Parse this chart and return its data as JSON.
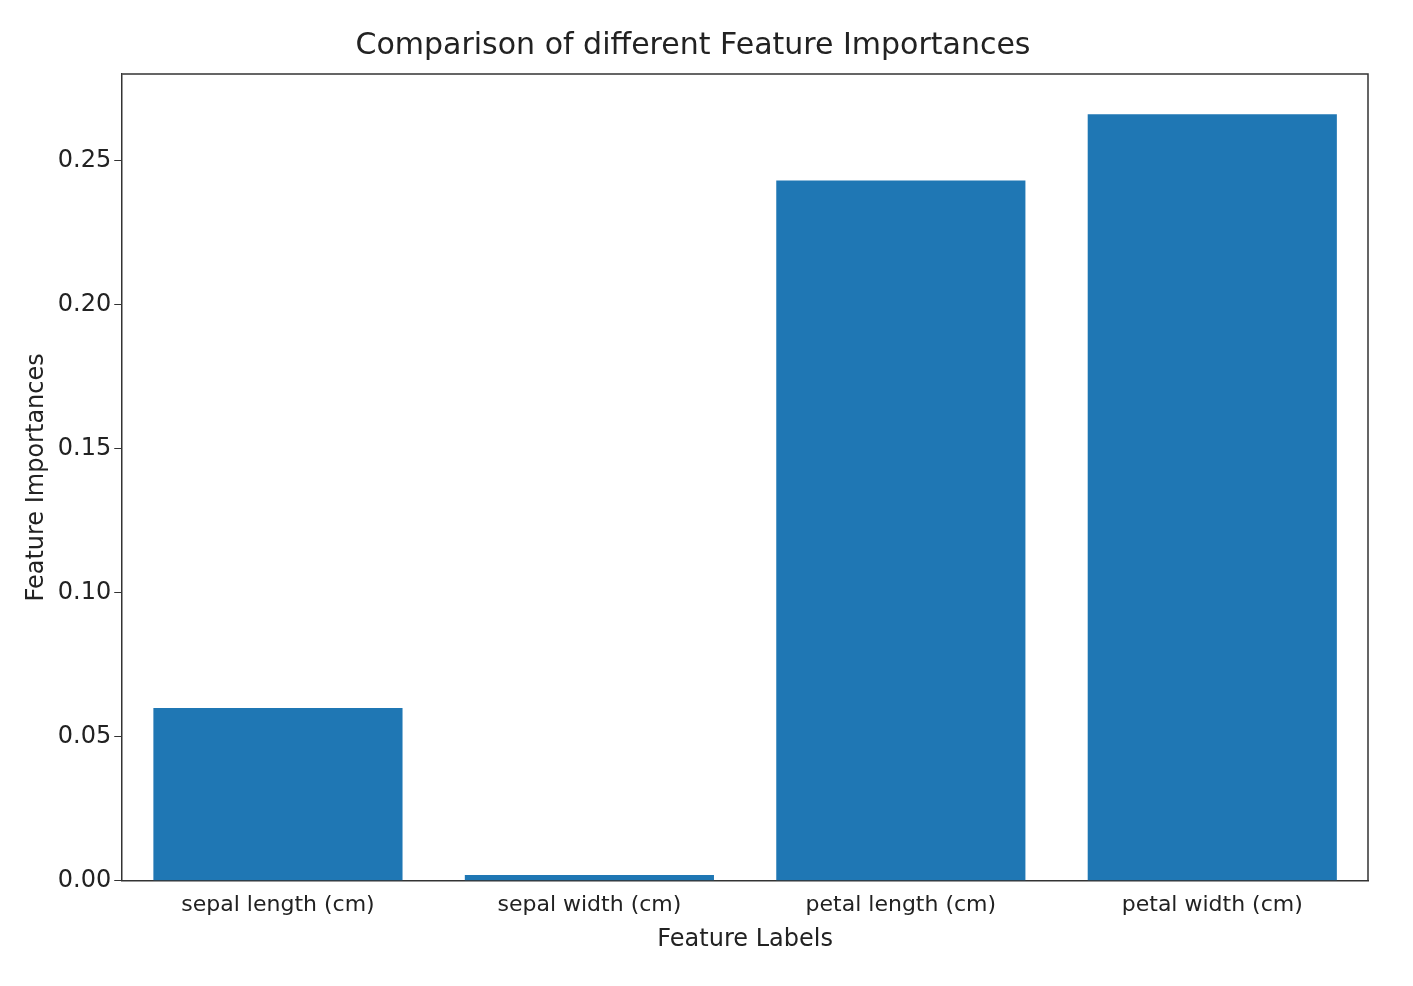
{
  "chart_data": {
    "type": "bar",
    "title": "Comparison of different Feature Importances",
    "xlabel": "Feature Labels",
    "ylabel": "Feature Importances",
    "categories": [
      "sepal length (cm)",
      "sepal width (cm)",
      "petal length (cm)",
      "petal width (cm)"
    ],
    "values": [
      0.06,
      0.002,
      0.243,
      0.266
    ],
    "color": "#1f77b4",
    "ylim": [
      0,
      0.28
    ],
    "yticks": [
      {
        "value": 0,
        "label": "0.00"
      },
      {
        "value": 0.05,
        "label": "0.05"
      },
      {
        "value": 0.1,
        "label": "0.10"
      },
      {
        "value": 0.15,
        "label": "0.15"
      },
      {
        "value": 0.2,
        "label": "0.20"
      },
      {
        "value": 0.25,
        "label": "0.25"
      }
    ],
    "grid": false,
    "legend": false
  }
}
